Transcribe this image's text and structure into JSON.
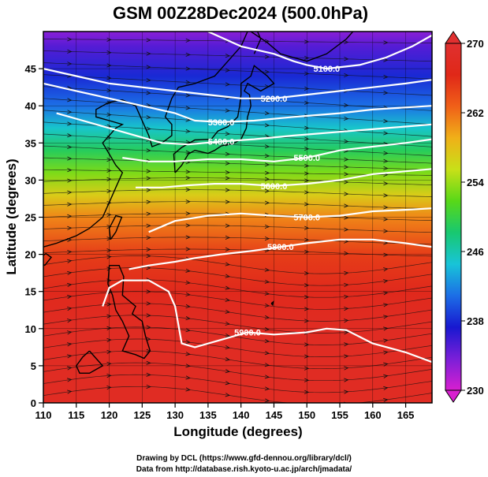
{
  "title": "GSM 00Z28Dec2024 (500.0hPa)",
  "credit_line1": "Drawing by DCL (https://www.gfd-dennou.org/library/dcl/)",
  "credit_line2": "Data from http://database.rish.kyoto-u.ac.jp/arch/jmadata/",
  "chart_data": {
    "type": "heatmap",
    "title": "GSM 00Z28Dec2024 (500.0hPa)",
    "xlabel": "Longitude (degrees)",
    "ylabel": "Latitude (degrees)",
    "xlim": [
      110,
      169
    ],
    "ylim": [
      0,
      50
    ],
    "xticks": [
      110,
      115,
      120,
      125,
      130,
      135,
      140,
      145,
      150,
      155,
      160,
      165
    ],
    "yticks": [
      0,
      5,
      10,
      15,
      20,
      25,
      30,
      35,
      40,
      45
    ],
    "grid": true,
    "colorbar": {
      "min": 230,
      "max": 270,
      "ticks": [
        230,
        238,
        246,
        254,
        262,
        270
      ],
      "colors": [
        "#d81fd0",
        "#7a1fd8",
        "#1818d0",
        "#1c6ee6",
        "#18c4d8",
        "#18c870",
        "#58d818",
        "#c8e018",
        "#f0b018",
        "#f06018",
        "#e02818",
        "#e03030"
      ]
    },
    "temperature_by_latitude": [
      {
        "lat": 0,
        "value": 268
      },
      {
        "lat": 5,
        "value": 268
      },
      {
        "lat": 10,
        "value": 268
      },
      {
        "lat": 15,
        "value": 267
      },
      {
        "lat": 20,
        "value": 265
      },
      {
        "lat": 25,
        "value": 261
      },
      {
        "lat": 28,
        "value": 257
      },
      {
        "lat": 31,
        "value": 253
      },
      {
        "lat": 34,
        "value": 249
      },
      {
        "lat": 37,
        "value": 245
      },
      {
        "lat": 40,
        "value": 241
      },
      {
        "lat": 44,
        "value": 238
      },
      {
        "lat": 48,
        "value": 235
      },
      {
        "lat": 50,
        "value": 233
      }
    ],
    "contours": [
      {
        "label": "5100.0",
        "points": [
          [
            135,
            50
          ],
          [
            140,
            48
          ],
          [
            145,
            47
          ],
          [
            148,
            46
          ],
          [
            150,
            45.5
          ],
          [
            153,
            45
          ],
          [
            158,
            45.5
          ],
          [
            162,
            46.5
          ],
          [
            166,
            48
          ],
          [
            169,
            49.5
          ]
        ]
      },
      {
        "label": "5200.0",
        "points": [
          [
            110,
            45
          ],
          [
            115,
            44
          ],
          [
            120,
            43
          ],
          [
            125,
            42.5
          ],
          [
            130,
            42
          ],
          [
            135,
            41.5
          ],
          [
            140,
            41
          ],
          [
            145,
            41
          ],
          [
            150,
            41.5
          ],
          [
            155,
            42
          ],
          [
            160,
            42.5
          ],
          [
            165,
            43
          ],
          [
            169,
            43.5
          ]
        ]
      },
      {
        "label": "5300.0",
        "points": [
          [
            110,
            43
          ],
          [
            115,
            42
          ],
          [
            120,
            41
          ],
          [
            125,
            40
          ],
          [
            130,
            39
          ],
          [
            133,
            38
          ],
          [
            137,
            37.8
          ],
          [
            142,
            38
          ],
          [
            148,
            38.5
          ],
          [
            155,
            39
          ],
          [
            160,
            39.5
          ],
          [
            169,
            40
          ]
        ]
      },
      {
        "label": "5400.0",
        "points": [
          [
            112,
            39
          ],
          [
            116,
            38
          ],
          [
            120,
            37
          ],
          [
            124,
            36
          ],
          [
            128,
            35
          ],
          [
            132,
            34.8
          ],
          [
            137,
            35.2
          ],
          [
            142,
            35.5
          ],
          [
            148,
            36
          ],
          [
            155,
            36.5
          ],
          [
            162,
            37
          ],
          [
            169,
            37.5
          ]
        ]
      },
      {
        "label": "5500.0",
        "points": [
          [
            122,
            33
          ],
          [
            126,
            32.5
          ],
          [
            130,
            32.5
          ],
          [
            135,
            32.8
          ],
          [
            140,
            32.8
          ],
          [
            145,
            32.5
          ],
          [
            150,
            33
          ],
          [
            155,
            34
          ],
          [
            160,
            34.5
          ],
          [
            165,
            35
          ],
          [
            169,
            35.5
          ]
        ]
      },
      {
        "label": "5600.0",
        "points": [
          [
            124,
            29
          ],
          [
            128,
            29
          ],
          [
            132,
            29.3
          ],
          [
            136,
            29.5
          ],
          [
            140,
            29.5
          ],
          [
            145,
            29.2
          ],
          [
            150,
            29.5
          ],
          [
            155,
            30
          ],
          [
            160,
            30.8
          ],
          [
            169,
            31.5
          ]
        ]
      },
      {
        "label": "5700.0",
        "points": [
          [
            126,
            23
          ],
          [
            130,
            24.5
          ],
          [
            135,
            25.2
          ],
          [
            140,
            25.5
          ],
          [
            145,
            25.2
          ],
          [
            150,
            25
          ],
          [
            155,
            25.2
          ],
          [
            160,
            25.8
          ],
          [
            165,
            26
          ],
          [
            169,
            26.2
          ]
        ]
      },
      {
        "label": "5800.0",
        "points": [
          [
            123,
            18
          ],
          [
            126,
            18.5
          ],
          [
            130,
            19
          ],
          [
            133,
            19.5
          ],
          [
            137,
            20
          ],
          [
            142,
            20.5
          ],
          [
            146,
            21
          ],
          [
            150,
            21.5
          ],
          [
            155,
            22
          ],
          [
            160,
            22
          ],
          [
            165,
            21.5
          ],
          [
            169,
            21
          ]
        ]
      },
      {
        "label": "5900.0",
        "points": [
          [
            119,
            13
          ],
          [
            120,
            15.5
          ],
          [
            122,
            16.5
          ],
          [
            126,
            16.5
          ],
          [
            129,
            15
          ],
          [
            130,
            13
          ],
          [
            131,
            8
          ],
          [
            133,
            7.5
          ],
          [
            137,
            8.5
          ],
          [
            141,
            9.5
          ],
          [
            145,
            9.2
          ],
          [
            150,
            9.5
          ],
          [
            153,
            10
          ],
          [
            156,
            9.8
          ],
          [
            160,
            8
          ],
          [
            165,
            6.8
          ],
          [
            169,
            5.5
          ]
        ]
      }
    ]
  }
}
